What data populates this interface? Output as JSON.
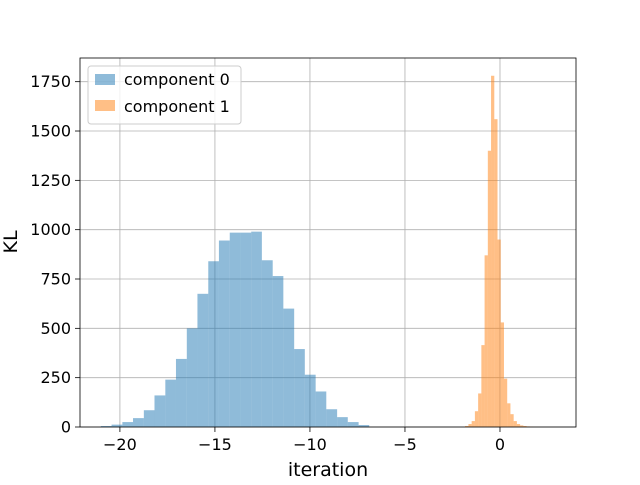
{
  "chart_data": {
    "type": "histogram",
    "title": "",
    "xlabel": "iteration",
    "ylabel": "KL",
    "xlim": [
      -22.1,
      4.0
    ],
    "ylim": [
      0,
      1870
    ],
    "xticks": [
      -20,
      -15,
      -10,
      -5,
      0
    ],
    "xtick_labels": [
      "−20",
      "−15",
      "−10",
      "−5",
      "0"
    ],
    "yticks": [
      0,
      250,
      500,
      750,
      1000,
      1250,
      1500,
      1750
    ],
    "ytick_labels": [
      "0",
      "250",
      "500",
      "750",
      "1000",
      "1250",
      "1500",
      "1750"
    ],
    "grid": true,
    "legend_position": "top-left",
    "series": [
      {
        "name": "component 0",
        "color": "#1f77b4",
        "alpha": 0.5,
        "bin_edges": [
          -21.0,
          -20.44,
          -19.87,
          -19.31,
          -18.74,
          -18.18,
          -17.61,
          -17.05,
          -16.48,
          -15.92,
          -15.35,
          -14.79,
          -14.22,
          -13.66,
          -13.09,
          -12.53,
          -11.96,
          -11.4,
          -10.83,
          -10.27,
          -9.7,
          -9.14,
          -8.57,
          -8.01,
          -7.44,
          -6.88,
          -6.31
        ],
        "counts": [
          5,
          12,
          25,
          45,
          85,
          160,
          240,
          345,
          500,
          675,
          840,
          945,
          985,
          985,
          990,
          845,
          765,
          600,
          395,
          265,
          180,
          90,
          50,
          25,
          10,
          0
        ]
      },
      {
        "name": "component 1",
        "color": "#ff7f0e",
        "alpha": 0.5,
        "bin_edges": [
          -1.84,
          -1.66,
          -1.49,
          -1.32,
          -1.15,
          -0.98,
          -0.81,
          -0.64,
          -0.47,
          -0.3,
          -0.13,
          0.04,
          0.21,
          0.38,
          0.55,
          0.72,
          0.89,
          1.06,
          1.23,
          1.4,
          1.57,
          1.74,
          1.91,
          2.08,
          2.25,
          2.42,
          2.59,
          2.76,
          2.93,
          3.1
        ],
        "counts": [
          5,
          15,
          30,
          80,
          170,
          415,
          870,
          1400,
          1780,
          1560,
          950,
          530,
          245,
          120,
          65,
          30,
          15,
          8,
          5,
          3,
          2,
          1,
          1,
          0,
          0,
          0,
          0,
          0,
          0
        ]
      }
    ]
  }
}
